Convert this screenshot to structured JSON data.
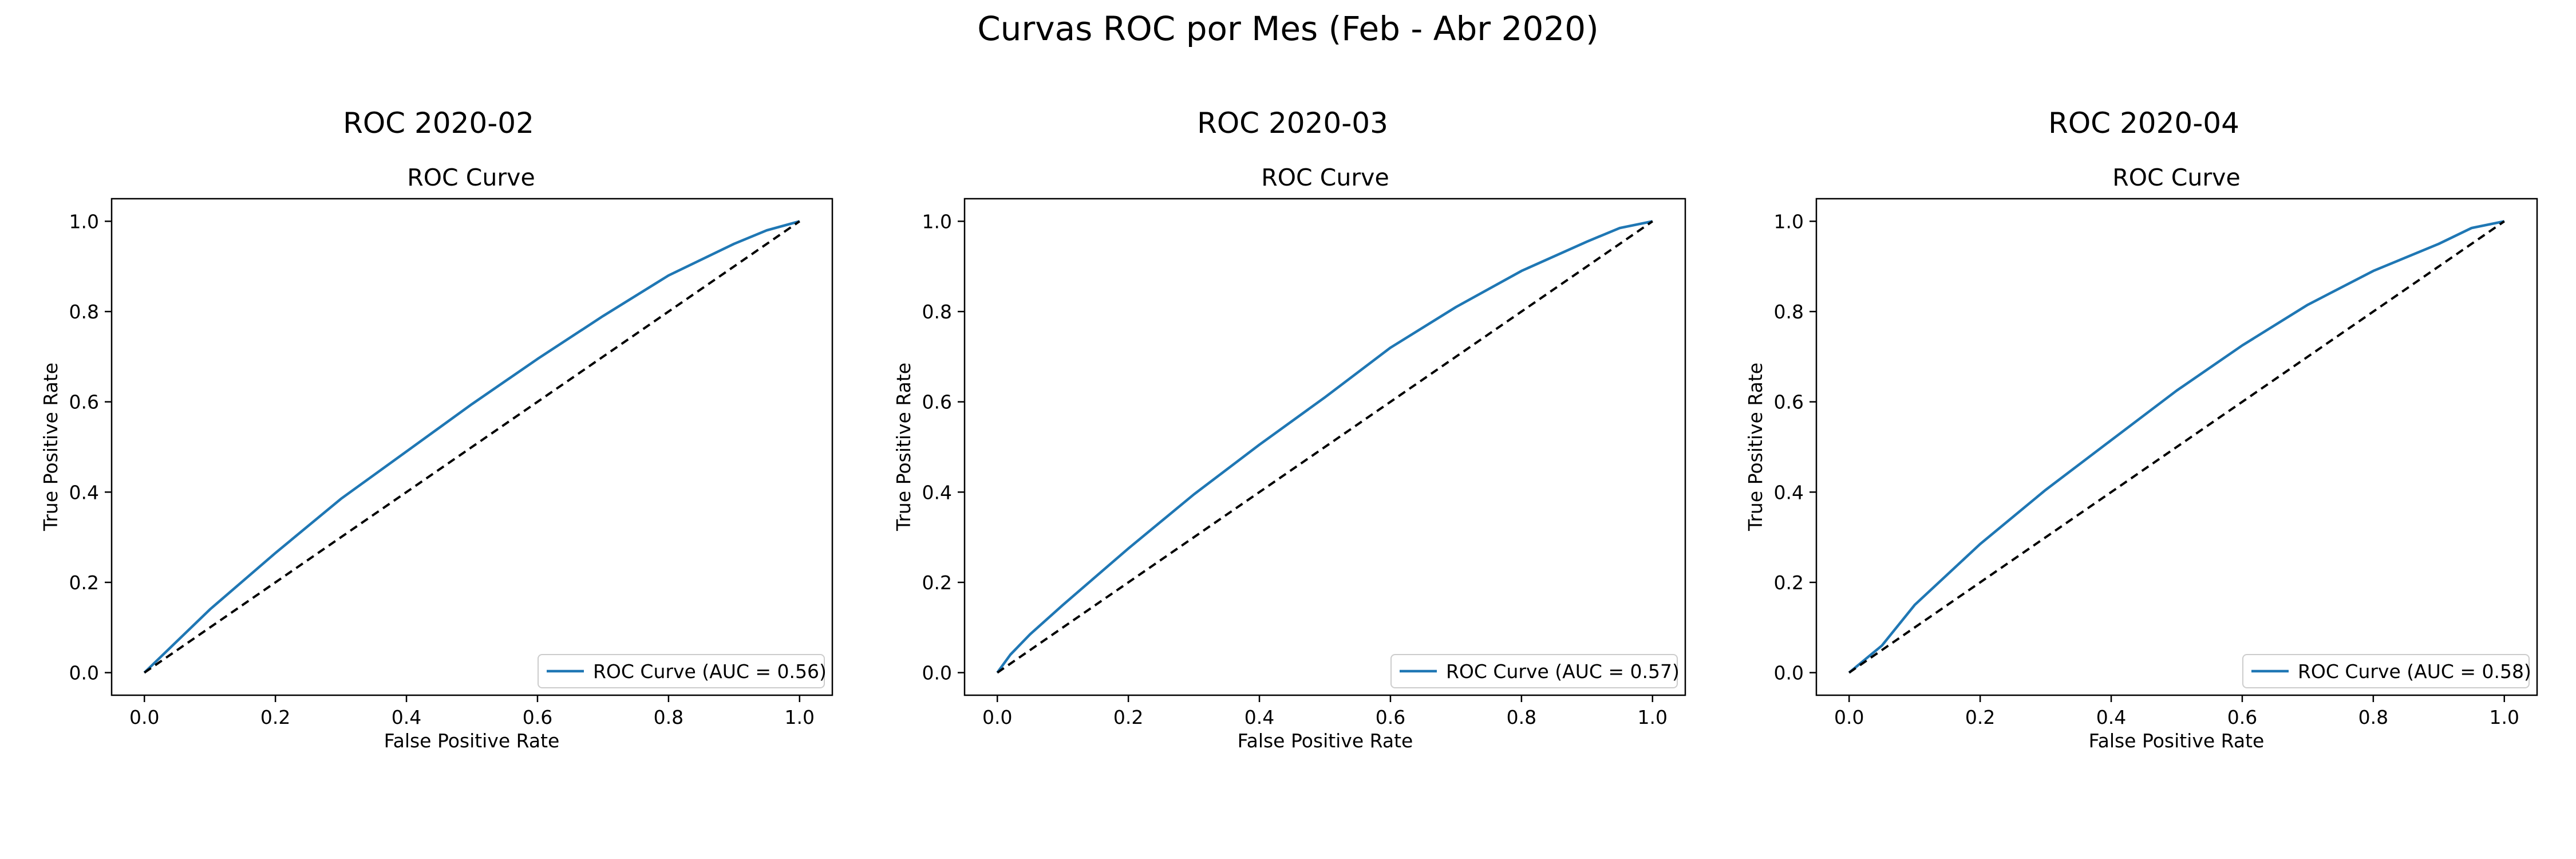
{
  "figure": {
    "suptitle": "Curvas ROC por Mes (Feb - Abr 2020)"
  },
  "colors": {
    "roc_line": "#1f77b4",
    "diagonal": "#000000",
    "axes": "#000000",
    "legend_border": "#cccccc"
  },
  "chart_data": [
    {
      "type": "line",
      "panel_title": "ROC 2020-02",
      "title": "ROC Curve",
      "xlabel": "False Positive Rate",
      "ylabel": "True Positive Rate",
      "xlim": [
        -0.05,
        1.05
      ],
      "ylim": [
        -0.05,
        1.05
      ],
      "xticks": [
        "0.0",
        "0.2",
        "0.4",
        "0.6",
        "0.8",
        "1.0"
      ],
      "yticks": [
        "0.0",
        "0.2",
        "0.4",
        "0.6",
        "0.8",
        "1.0"
      ],
      "grid": false,
      "legend": "lower-right",
      "series": [
        {
          "name": "ROC Curve (AUC = 0.56)",
          "style": "solid",
          "x": [
            0,
            0.05,
            0.1,
            0.2,
            0.3,
            0.4,
            0.5,
            0.6,
            0.7,
            0.8,
            0.9,
            0.95,
            1.0
          ],
          "y": [
            0,
            0.07,
            0.14,
            0.265,
            0.385,
            0.49,
            0.595,
            0.695,
            0.79,
            0.88,
            0.95,
            0.98,
            1.0
          ]
        },
        {
          "name": "",
          "style": "dashed",
          "x": [
            0,
            1
          ],
          "y": [
            0,
            1
          ]
        }
      ]
    },
    {
      "type": "line",
      "panel_title": "ROC 2020-03",
      "title": "ROC Curve",
      "xlabel": "False Positive Rate",
      "ylabel": "True Positive Rate",
      "xlim": [
        -0.05,
        1.05
      ],
      "ylim": [
        -0.05,
        1.05
      ],
      "xticks": [
        "0.0",
        "0.2",
        "0.4",
        "0.6",
        "0.8",
        "1.0"
      ],
      "yticks": [
        "0.0",
        "0.2",
        "0.4",
        "0.6",
        "0.8",
        "1.0"
      ],
      "grid": false,
      "legend": "lower-right",
      "series": [
        {
          "name": "ROC Curve (AUC = 0.57)",
          "style": "solid",
          "x": [
            0,
            0.02,
            0.05,
            0.1,
            0.2,
            0.3,
            0.4,
            0.5,
            0.6,
            0.7,
            0.8,
            0.9,
            0.95,
            1.0
          ],
          "y": [
            0,
            0.04,
            0.085,
            0.15,
            0.275,
            0.395,
            0.505,
            0.61,
            0.72,
            0.81,
            0.89,
            0.955,
            0.985,
            1.0
          ]
        },
        {
          "name": "",
          "style": "dashed",
          "x": [
            0,
            1
          ],
          "y": [
            0,
            1
          ]
        }
      ]
    },
    {
      "type": "line",
      "panel_title": "ROC 2020-04",
      "title": "ROC Curve",
      "xlabel": "False Positive Rate",
      "ylabel": "True Positive Rate",
      "xlim": [
        -0.05,
        1.05
      ],
      "ylim": [
        -0.05,
        1.05
      ],
      "xticks": [
        "0.0",
        "0.2",
        "0.4",
        "0.6",
        "0.8",
        "1.0"
      ],
      "yticks": [
        "0.0",
        "0.2",
        "0.4",
        "0.6",
        "0.8",
        "1.0"
      ],
      "grid": false,
      "legend": "lower-right",
      "series": [
        {
          "name": "ROC Curve (AUC = 0.58)",
          "style": "solid",
          "x": [
            0,
            0.05,
            0.1,
            0.2,
            0.3,
            0.4,
            0.5,
            0.6,
            0.7,
            0.8,
            0.9,
            0.95,
            1.0
          ],
          "y": [
            0,
            0.06,
            0.15,
            0.285,
            0.405,
            0.515,
            0.625,
            0.725,
            0.815,
            0.89,
            0.95,
            0.985,
            1.0
          ]
        },
        {
          "name": "",
          "style": "dashed",
          "x": [
            0,
            1
          ],
          "y": [
            0,
            1
          ]
        }
      ]
    }
  ]
}
